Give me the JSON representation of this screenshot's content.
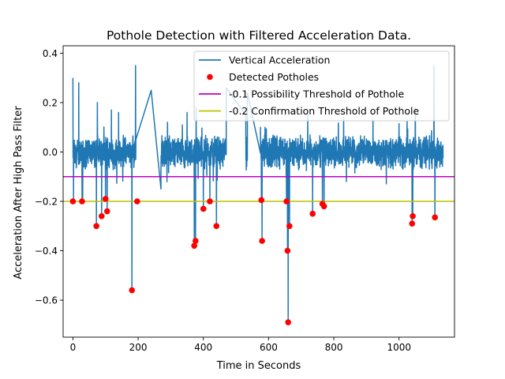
{
  "chart_data": {
    "type": "line",
    "title": "Pothole Detection with Filtered Acceleration Data.",
    "xlabel": "Time in Seconds",
    "ylabel": "Acceleration After High Pass Filter",
    "xlim": [
      -30,
      1170
    ],
    "ylim": [
      -0.75,
      0.43
    ],
    "x_ticks": [
      0,
      200,
      400,
      600,
      800,
      1000
    ],
    "x_tick_labels": [
      "0",
      "200",
      "400",
      "600",
      "800",
      "1000"
    ],
    "y_ticks": [
      0.4,
      0.2,
      0.0,
      -0.2,
      -0.4,
      -0.6
    ],
    "y_tick_labels": [
      "0.4",
      "0.2",
      "0.0",
      "−0.2",
      "−0.4",
      "−0.6"
    ],
    "legend": {
      "placement": "top-right",
      "entries": [
        {
          "label": "Vertical Acceleration",
          "kind": "line",
          "color": "#1f77b4"
        },
        {
          "label": "Detected Potholes",
          "kind": "marker",
          "color": "#ff0000"
        },
        {
          "label": "-0.1 Possibility Threshold of Pothole",
          "kind": "line",
          "color": "#bf00bf"
        },
        {
          "label": "-0.2 Confirmation Threshold of Pothole",
          "kind": "line",
          "color": "#bfbf00"
        }
      ]
    },
    "series": [
      {
        "name": "Vertical Acceleration",
        "color": "#1f77b4",
        "x_range": [
          0,
          1135
        ],
        "baseline_noise": 0.05,
        "spikes": [
          [
            0,
            0.3
          ],
          [
            2,
            -0.19
          ],
          [
            18,
            0.28
          ],
          [
            28,
            -0.19
          ],
          [
            30,
            -0.2
          ],
          [
            72,
            -0.3
          ],
          [
            75,
            0.2
          ],
          [
            88,
            -0.25
          ],
          [
            100,
            -0.19
          ],
          [
            105,
            -0.24
          ],
          [
            118,
            0.17
          ],
          [
            140,
            0.16
          ],
          [
            181,
            -0.56
          ],
          [
            192,
            0.35
          ],
          [
            197,
            -0.2
          ],
          [
            240,
            0.25
          ],
          [
            270,
            -0.15
          ],
          [
            290,
            0.12
          ],
          [
            350,
            0.16
          ],
          [
            372,
            -0.38
          ],
          [
            376,
            -0.36
          ],
          [
            378,
            0.18
          ],
          [
            400,
            -0.23
          ],
          [
            420,
            -0.2
          ],
          [
            440,
            -0.3
          ],
          [
            530,
            0.15
          ],
          [
            578,
            -0.2
          ],
          [
            580,
            -0.36
          ],
          [
            655,
            -0.2
          ],
          [
            658,
            -0.4
          ],
          [
            660,
            -0.69
          ],
          [
            664,
            -0.3
          ],
          [
            720,
            0.15
          ],
          [
            735,
            -0.25
          ],
          [
            765,
            -0.21
          ],
          [
            770,
            -0.22
          ],
          [
            830,
            0.14
          ],
          [
            920,
            0.13
          ],
          [
            1040,
            -0.29
          ],
          [
            1042,
            -0.26
          ],
          [
            1050,
            0.18
          ],
          [
            1107,
            0.35
          ],
          [
            1110,
            -0.27
          ]
        ],
        "flat_segments": [
          {
            "from": [
              193,
              0.05
            ],
            "to": [
              240,
              0.25
            ]
          },
          {
            "from": [
              240,
              0.25
            ],
            "to": [
              270,
              -0.08
            ]
          },
          {
            "from": [
              470,
              0.26
            ],
            "to": [
              530,
              0.1
            ]
          },
          {
            "from": [
              535,
              0.24
            ],
            "to": [
              575,
              0.1
            ]
          }
        ]
      },
      {
        "name": "Detected Potholes",
        "color": "#ff0000",
        "points": [
          [
            0,
            -0.2
          ],
          [
            28,
            -0.2
          ],
          [
            72,
            -0.3
          ],
          [
            88,
            -0.26
          ],
          [
            100,
            -0.19
          ],
          [
            105,
            -0.24
          ],
          [
            181,
            -0.56
          ],
          [
            197,
            -0.2
          ],
          [
            372,
            -0.38
          ],
          [
            376,
            -0.36
          ],
          [
            400,
            -0.23
          ],
          [
            420,
            -0.2
          ],
          [
            440,
            -0.3
          ],
          [
            578,
            -0.195
          ],
          [
            580,
            -0.36
          ],
          [
            655,
            -0.2
          ],
          [
            658,
            -0.4
          ],
          [
            660,
            -0.69
          ],
          [
            664,
            -0.3
          ],
          [
            735,
            -0.25
          ],
          [
            765,
            -0.21
          ],
          [
            770,
            -0.22
          ],
          [
            1040,
            -0.29
          ],
          [
            1042,
            -0.26
          ],
          [
            1110,
            -0.265
          ]
        ]
      },
      {
        "name": "-0.1 Possibility Threshold of Pothole",
        "color": "#bf00bf",
        "y": -0.1
      },
      {
        "name": "-0.2 Confirmation Threshold of Pothole",
        "color": "#bfbf00",
        "y": -0.2
      }
    ]
  }
}
